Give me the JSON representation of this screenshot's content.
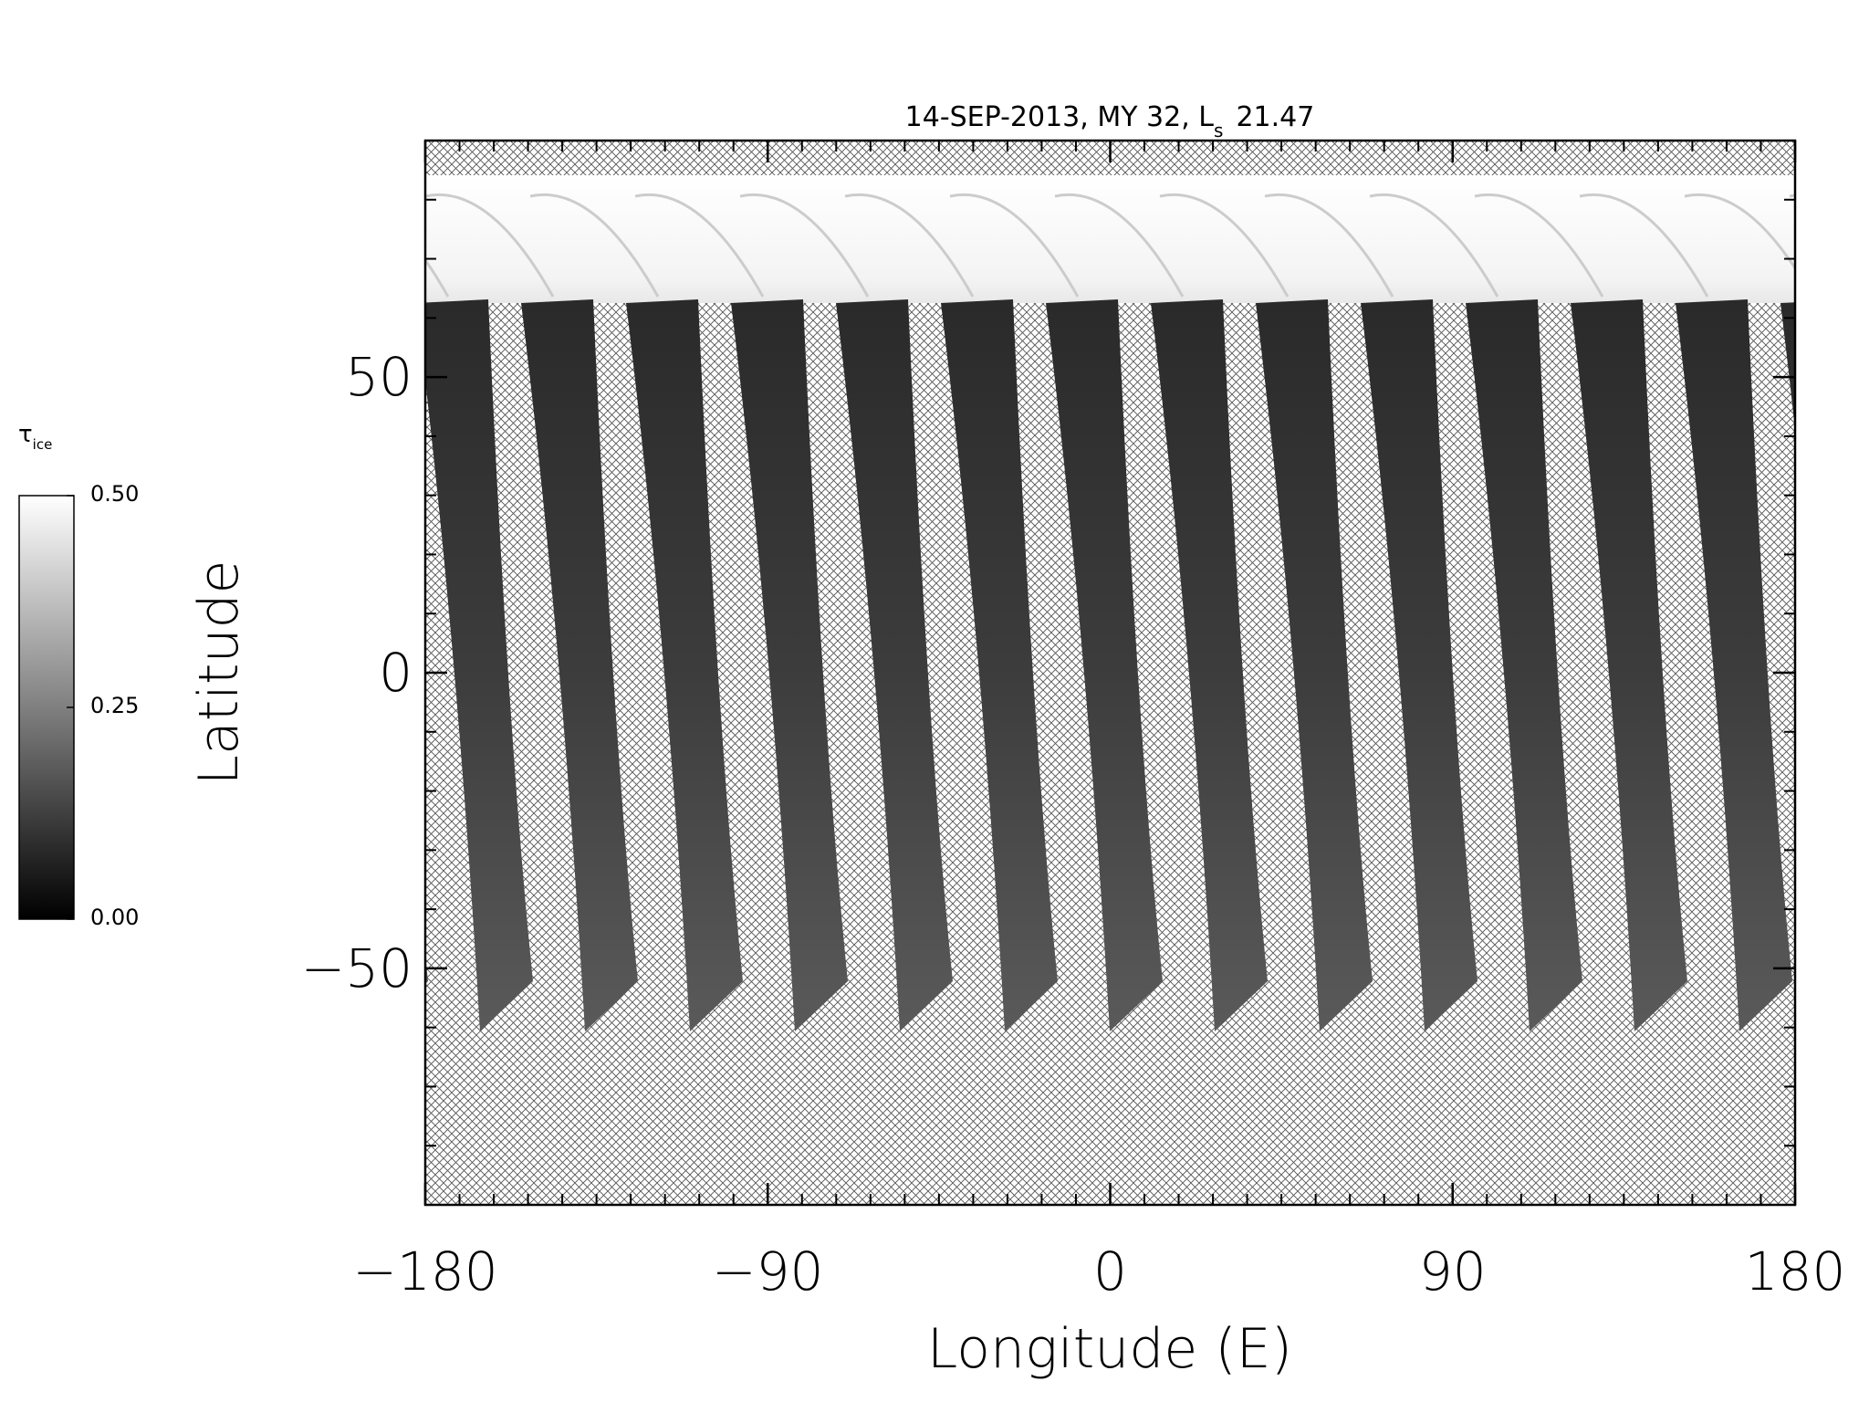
{
  "chart_data": {
    "type": "map",
    "title": "14-SEP-2013, MY 32,  L",
    "title_subscript": "s",
    "title_value": "21.47",
    "xlabel": "Longitude (E)",
    "ylabel": "Latitude",
    "xlim": [
      -180,
      180
    ],
    "xticks": [
      {
        "value": -180,
        "label": "−180"
      },
      {
        "value": -90,
        "label": "−90"
      },
      0,
      90,
      180
    ],
    "xminor_step": 9,
    "ylim": [
      -90,
      90
    ],
    "yticks": [
      {
        "value": -50,
        "label": "−50"
      },
      0,
      50
    ],
    "yminor_step": 10,
    "colorbar": {
      "label": "τ",
      "label_subscript": "ice",
      "lim": [
        0,
        0.5
      ],
      "ticks": [
        {
          "value": 0,
          "label": "0.00"
        },
        {
          "value": 0.25,
          "label": "0.25"
        },
        {
          "value": 0.5,
          "label": "0.50"
        }
      ],
      "colors": [
        "#000000",
        "#ffffff"
      ]
    }
  }
}
